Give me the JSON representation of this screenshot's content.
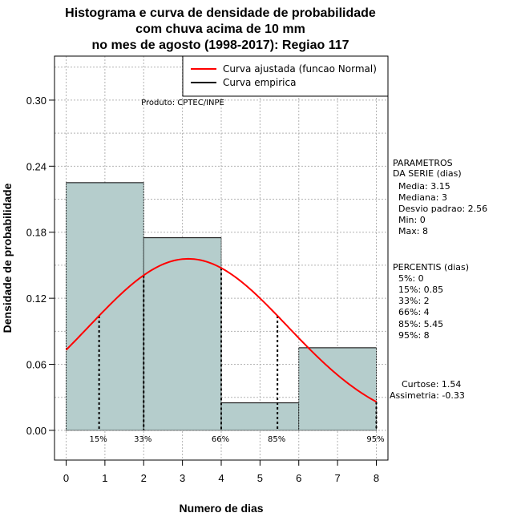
{
  "chart_data": {
    "type": "histogram",
    "title_lines": [
      "Histograma e curva de densidade de probabilidade",
      "com chuva acima de 10 mm",
      "no mes de agosto (1998-2017): Regiao 117"
    ],
    "xlabel": "Numero de dias",
    "ylabel": "Densidade de probabilidade",
    "xlim": [
      -0.3,
      8.3
    ],
    "ylim": [
      -0.027,
      0.34
    ],
    "x_ticks": [
      "0",
      "1",
      "2",
      "3",
      "4",
      "5",
      "6",
      "7",
      "8"
    ],
    "y_ticks": [
      "0.00",
      "0.06",
      "0.12",
      "0.18",
      "0.24",
      "0.30"
    ],
    "y_tick_values": [
      0.0,
      0.06,
      0.12,
      0.18,
      0.24,
      0.3
    ],
    "bins": [
      {
        "start": 0,
        "end": 2,
        "density": 0.225
      },
      {
        "start": 2,
        "end": 4,
        "density": 0.175
      },
      {
        "start": 4,
        "end": 6,
        "density": 0.025
      },
      {
        "start": 6,
        "end": 8,
        "density": 0.075
      }
    ],
    "normal_fit": {
      "mean": 3.15,
      "sd": 2.56
    },
    "percentile_lines": [
      {
        "label": "15%",
        "x": 0.85
      },
      {
        "label": "33%",
        "x": 2
      },
      {
        "label": "66%",
        "x": 4
      },
      {
        "label": "85%",
        "x": 5.45
      },
      {
        "label": "95%",
        "x": 8
      }
    ],
    "legend": {
      "position": "top-right",
      "entries": [
        {
          "label": "Curva ajustada (funcao Normal)",
          "color": "#ff0000"
        },
        {
          "label": "Curva empirica",
          "color": "#000000"
        }
      ]
    },
    "annotation": "Produto: CPTEC/INPE"
  },
  "side_panel": {
    "parametros_title": [
      "PARAMETROS",
      "DA SERIE (dias)"
    ],
    "parametros": [
      "Media: 3.15",
      "Mediana: 3",
      "Desvio padrao: 2.56",
      "Min: 0",
      "Max: 8"
    ],
    "percentis_title": "PERCENTIS (dias)",
    "percentis": [
      "5%: 0",
      "15%: 0.85",
      "33%: 2",
      "66%: 4",
      "85%: 5.45",
      "95%: 8"
    ],
    "curtose": "Curtose: 1.54",
    "assimetria": "Assimetria: -0.33"
  },
  "colors": {
    "bar_fill": "#b5cdcc",
    "curve": "#ff0000",
    "grid": "#b3b3b3"
  }
}
